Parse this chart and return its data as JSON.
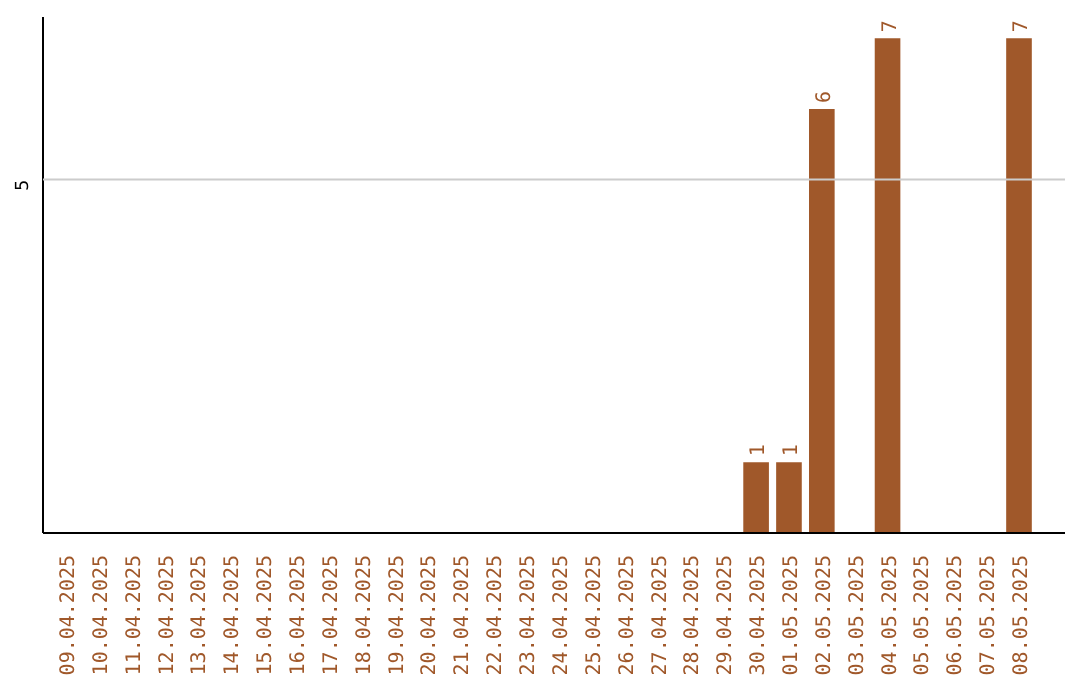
{
  "chart_data": {
    "type": "bar",
    "categories": [
      "09.04.2025",
      "10.04.2025",
      "11.04.2025",
      "12.04.2025",
      "13.04.2025",
      "14.04.2025",
      "15.04.2025",
      "16.04.2025",
      "17.04.2025",
      "18.04.2025",
      "19.04.2025",
      "20.04.2025",
      "21.04.2025",
      "22.04.2025",
      "23.04.2025",
      "24.04.2025",
      "25.04.2025",
      "26.04.2025",
      "27.04.2025",
      "28.04.2025",
      "29.04.2025",
      "30.04.2025",
      "01.05.2025",
      "02.05.2025",
      "03.05.2025",
      "04.05.2025",
      "05.05.2025",
      "06.05.2025",
      "07.05.2025",
      "08.05.2025"
    ],
    "values": [
      null,
      null,
      null,
      null,
      null,
      null,
      null,
      null,
      null,
      null,
      null,
      null,
      null,
      null,
      null,
      null,
      null,
      null,
      null,
      null,
      null,
      1,
      1,
      6,
      null,
      7,
      null,
      null,
      null,
      7
    ],
    "value_labels": [
      null,
      null,
      null,
      null,
      null,
      null,
      null,
      null,
      null,
      null,
      null,
      null,
      null,
      null,
      null,
      null,
      null,
      null,
      null,
      null,
      null,
      "1",
      "1",
      "6",
      null,
      "7",
      null,
      null,
      null,
      "7"
    ],
    "color": "#a0582a",
    "ylim": [
      0,
      7.3
    ],
    "ref_lines": [
      {
        "axis": "y",
        "value": 5,
        "label": "5",
        "color": "#cccccc"
      }
    ]
  }
}
